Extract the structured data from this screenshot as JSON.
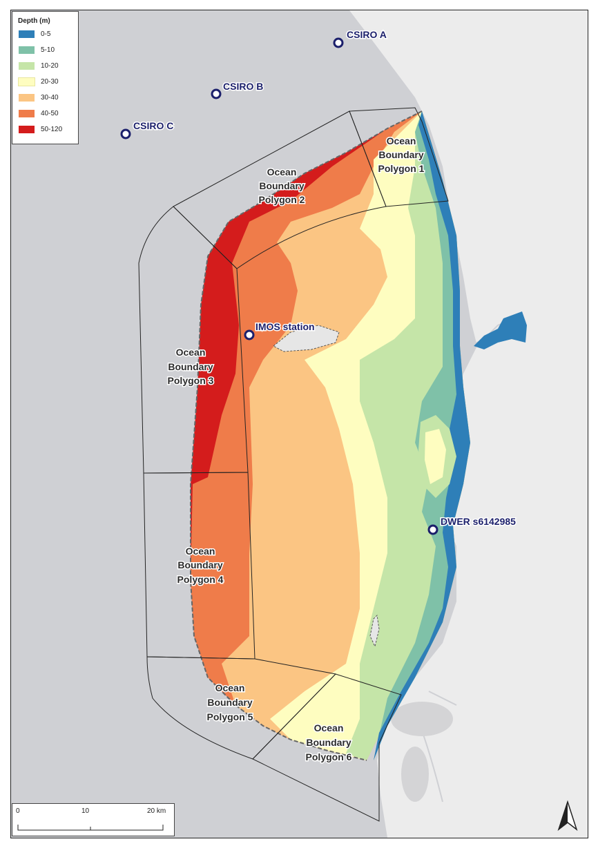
{
  "legend": {
    "title": "Depth (m)",
    "classes": [
      {
        "label": "0-5",
        "color": "#2e7fb8"
      },
      {
        "label": "5-10",
        "color": "#7fc1a8"
      },
      {
        "label": "10-20",
        "color": "#c5e5a8"
      },
      {
        "label": "20-30",
        "color": "#fefdc0"
      },
      {
        "label": "30-40",
        "color": "#fbc583"
      },
      {
        "label": "40-50",
        "color": "#ef7c4a"
      },
      {
        "label": "50-120",
        "color": "#d41c1c"
      }
    ]
  },
  "stations": [
    {
      "label": "CSIRO A"
    },
    {
      "label": "CSIRO B"
    },
    {
      "label": "CSIRO C"
    },
    {
      "label": "IMOS station"
    },
    {
      "label": "DWER s6142985"
    }
  ],
  "polygons": [
    {
      "label": [
        "Ocean",
        "Boundary",
        "Polygon 1"
      ]
    },
    {
      "label": [
        "Ocean",
        "Boundary",
        "Polygon 2"
      ]
    },
    {
      "label": [
        "Ocean",
        "Boundary",
        "Polygon 3"
      ]
    },
    {
      "label": [
        "Ocean",
        "Boundary",
        "Polygon 4"
      ]
    },
    {
      "label": [
        "Ocean",
        "Boundary",
        "Polygon 5"
      ]
    },
    {
      "label": [
        "Ocean",
        "Boundary",
        "Polygon 6"
      ]
    }
  ],
  "scale_bar": {
    "ticks": [
      "0",
      "10",
      "20 km"
    ]
  },
  "colors": {
    "ocean": "#cfd0d4",
    "land": "#eeeeee",
    "station_ring": "#1b1f6b"
  },
  "north_arrow": "north-arrow-icon"
}
